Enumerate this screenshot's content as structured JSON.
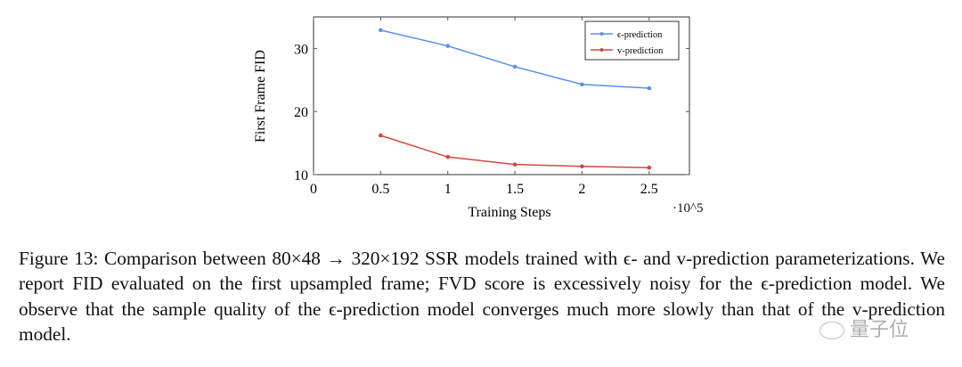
{
  "chart_data": {
    "type": "line",
    "title": "",
    "xlabel": "Training Steps",
    "x_multiplier_label": "·10^5",
    "ylabel": "First Frame FID",
    "x": [
      0.5,
      1,
      1.5,
      2,
      2.5
    ],
    "xticks": [
      "0",
      "0.5",
      "1",
      "1.5",
      "2",
      "2.5"
    ],
    "yticks": [
      "10",
      "20",
      "30"
    ],
    "xlim": [
      0,
      2.8
    ],
    "ylim": [
      10,
      35
    ],
    "legend_position": "top-right",
    "series": [
      {
        "name": "ϵ-prediction",
        "color": "#5b8ff0",
        "values": [
          32.9,
          30.4,
          27.1,
          24.3,
          23.7
        ]
      },
      {
        "name": "v-prediction",
        "color": "#d2493d",
        "values": [
          16.2,
          12.8,
          11.6,
          11.3,
          11.1
        ]
      }
    ]
  },
  "caption": "Figure 13: Comparison between 80×48 → 320×192 SSR models trained with ϵ- and v-prediction parameterizations. We report FID evaluated on the first upsampled frame; FVD score is excessively noisy for the ϵ-prediction model. We observe that the sample quality of the ϵ-prediction model converges much more slowly than that of the v-prediction model.",
  "watermark": "量子位"
}
